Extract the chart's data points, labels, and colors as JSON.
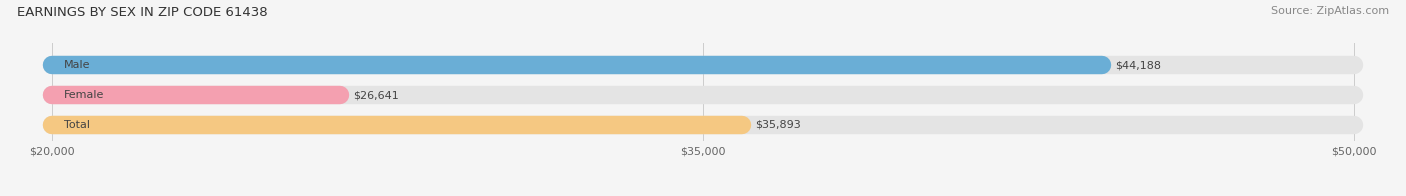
{
  "title": "EARNINGS BY SEX IN ZIP CODE 61438",
  "source": "Source: ZipAtlas.com",
  "categories": [
    "Male",
    "Female",
    "Total"
  ],
  "values": [
    44188,
    26641,
    35893
  ],
  "bar_colors": [
    "#6aaed6",
    "#f4a0b0",
    "#f5c882"
  ],
  "value_labels": [
    "$44,188",
    "$26,641",
    "$35,893"
  ],
  "xmin": 20000,
  "xmax": 50000,
  "xticks": [
    20000,
    35000,
    50000
  ],
  "xtick_labels": [
    "$20,000",
    "$35,000",
    "$50,000"
  ],
  "background_color": "#f5f5f5",
  "bar_bg_color": "#e4e4e4",
  "bar_bg_outline": "#d0d0d0",
  "title_fontsize": 9.5,
  "source_fontsize": 8,
  "label_fontsize": 8,
  "value_fontsize": 8,
  "tick_fontsize": 8
}
